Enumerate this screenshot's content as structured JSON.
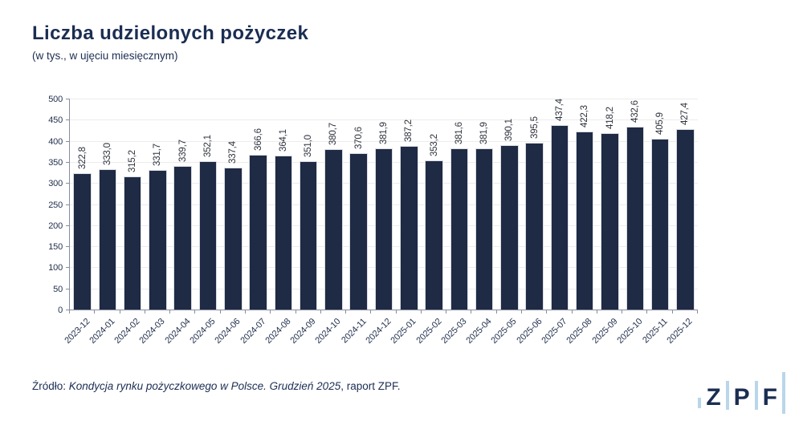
{
  "chart_data": {
    "type": "bar",
    "title": "Liczba udzielonych pożyczek",
    "subtitle": "(w tys., w ujęciu miesięcznym)",
    "xlabel": "",
    "ylabel": "",
    "ylim": [
      0,
      500
    ],
    "yticks": [
      0,
      50,
      100,
      150,
      200,
      250,
      300,
      350,
      400,
      450,
      500
    ],
    "grid": "horizontal",
    "legend_position": "none",
    "bar_color": "#1f2a44",
    "categories": [
      "2023-12",
      "2024-01",
      "2024-02",
      "2024-03",
      "2024-04",
      "2024-05",
      "2024-06",
      "2024-07",
      "2024-08",
      "2024-09",
      "2024-10",
      "2024-11",
      "2024-12",
      "2025-01",
      "2025-02",
      "2025-03",
      "2025-04",
      "2025-05",
      "2025-06",
      "2025-07",
      "2025-08",
      "2025-09",
      "2025-10",
      "2025-11",
      "2025-12"
    ],
    "values": [
      322.8,
      333.0,
      315.2,
      331.7,
      339.7,
      352.1,
      337.4,
      366.6,
      364.1,
      351.0,
      380.7,
      370.6,
      381.9,
      387.2,
      353.2,
      381.6,
      381.9,
      390.1,
      395.5,
      437.4,
      422.3,
      418.2,
      432.6,
      405.9,
      427.4
    ],
    "value_labels": [
      "322,8",
      "333,0",
      "315,2",
      "331,7",
      "339,7",
      "352,1",
      "337,4",
      "366,6",
      "364,1",
      "351,0",
      "380,7",
      "370,6",
      "381,9",
      "387,2",
      "353,2",
      "381,6",
      "381,9",
      "390,1",
      "395,5",
      "437,4",
      "422,3",
      "418,2",
      "432,6",
      "405,9",
      "427,4"
    ]
  },
  "footer": {
    "source_prefix": "Źródło: ",
    "source_italic": "Kondycja rynku pożyczkowego w Polsce. Grudzień 2025",
    "source_suffix": ", raport ZPF."
  },
  "logo": {
    "letters": [
      "Z",
      "P",
      "F"
    ],
    "accent_color": "#b9d6ea",
    "text_color": "#1b2d52"
  }
}
